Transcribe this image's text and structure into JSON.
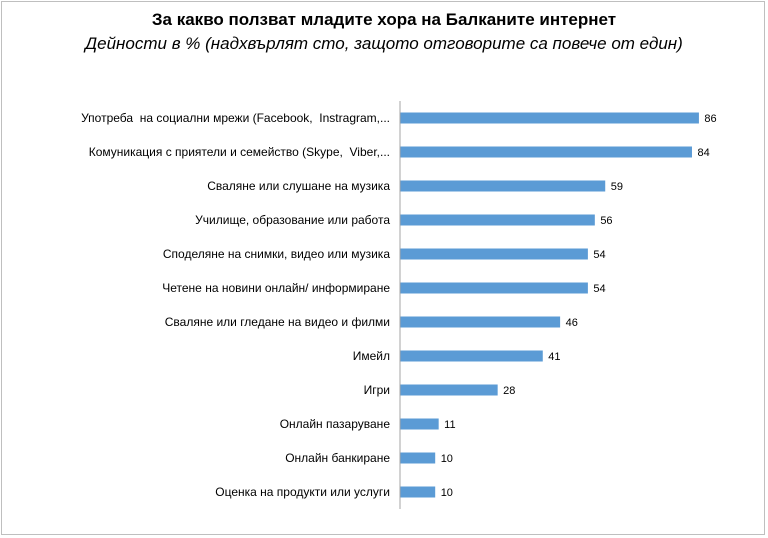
{
  "chart_data": {
    "type": "bar",
    "orientation": "horizontal",
    "title": "За какво ползват младите хора на Балканите интернет",
    "subtitle": "Дейности в % (надхвърлят сто, защото отговорите са повече от един)",
    "categories": [
      "Употреба  на социални мрежи (Facebook,  Instragram,...",
      "Комуникация с приятели и семейство (Skype,  Viber,...",
      "Сваляне или слушане на музика",
      "Училище, образование или работа",
      "Споделяне на снимки, видео или музика",
      "Четене на новини онлайн/ информиране",
      "Сваляне или гледане на видео и филми",
      "Имейл",
      "Игри",
      "Онлайн пазаруване",
      "Онлайн банкиране",
      "Оценка на продукти или услуги"
    ],
    "values": [
      86,
      84,
      59,
      56,
      54,
      54,
      46,
      41,
      28,
      11,
      10,
      10
    ],
    "xlim": [
      0,
      100
    ],
    "bar_color": "#5b9bd5",
    "axis_color": "#a6a6a6",
    "grid": false,
    "legend": "none"
  }
}
